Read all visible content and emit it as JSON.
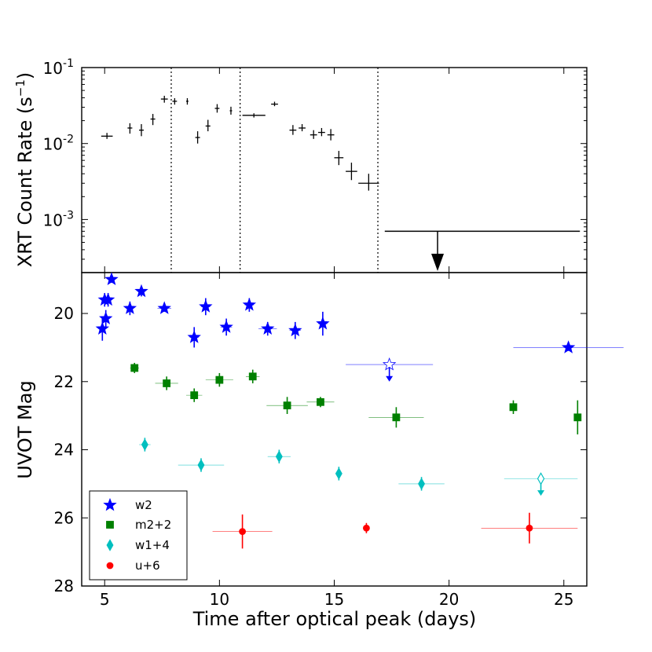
{
  "chart_data": [
    {
      "type": "scatter",
      "panel": "top",
      "ylabel": "XRT Count Rate (s",
      "ylabel_sup": "−1",
      "ylabel_close": ")",
      "yscale": "log",
      "ylim": [
        0.0002,
        0.1
      ],
      "xlim": [
        4,
        26
      ],
      "y_ticks": [
        {
          "value": 0.001,
          "base": "10",
          "exp": "-3"
        },
        {
          "value": 0.01,
          "base": "10",
          "exp": "-2"
        },
        {
          "value": 0.1,
          "base": "10",
          "exp": "-1"
        }
      ],
      "vlines": [
        7.9,
        10.9,
        16.9
      ],
      "points": [
        {
          "x": 5.1,
          "y": 0.0125,
          "xerr": 0.25,
          "ylo": 0.0115,
          "yhi": 0.0138
        },
        {
          "x": 6.1,
          "y": 0.016,
          "xerr": 0.0,
          "ylo": 0.0135,
          "yhi": 0.0185
        },
        {
          "x": 6.6,
          "y": 0.015,
          "xerr": 0.0,
          "ylo": 0.0125,
          "yhi": 0.018
        },
        {
          "x": 7.1,
          "y": 0.021,
          "xerr": 0.0,
          "ylo": 0.0175,
          "yhi": 0.0245
        },
        {
          "x": 7.6,
          "y": 0.0385,
          "xerr": 0.15,
          "ylo": 0.0345,
          "yhi": 0.0425
        },
        {
          "x": 8.05,
          "y": 0.036,
          "xerr": 0.1,
          "ylo": 0.0325,
          "yhi": 0.0395
        },
        {
          "x": 8.6,
          "y": 0.036,
          "xerr": 0.05,
          "ylo": 0.0325,
          "yhi": 0.0395
        },
        {
          "x": 9.05,
          "y": 0.012,
          "xerr": 0.0,
          "ylo": 0.01,
          "yhi": 0.0145
        },
        {
          "x": 9.5,
          "y": 0.017,
          "xerr": 0.0,
          "ylo": 0.0145,
          "yhi": 0.0205
        },
        {
          "x": 9.9,
          "y": 0.029,
          "xerr": 0.1,
          "ylo": 0.0255,
          "yhi": 0.033
        },
        {
          "x": 10.5,
          "y": 0.027,
          "xerr": 0.05,
          "ylo": 0.024,
          "yhi": 0.0305
        },
        {
          "x": 11.5,
          "y": 0.0235,
          "xerr": 0.5,
          "ylo": 0.022,
          "yhi": 0.025
        },
        {
          "x": 12.4,
          "y": 0.033,
          "xerr": 0.15,
          "ylo": 0.031,
          "yhi": 0.0355
        },
        {
          "x": 13.2,
          "y": 0.015,
          "xerr": 0.15,
          "ylo": 0.013,
          "yhi": 0.0175
        },
        {
          "x": 13.6,
          "y": 0.016,
          "xerr": 0.15,
          "ylo": 0.0145,
          "yhi": 0.018
        },
        {
          "x": 14.1,
          "y": 0.013,
          "xerr": 0.15,
          "ylo": 0.0115,
          "yhi": 0.015
        },
        {
          "x": 14.45,
          "y": 0.014,
          "xerr": 0.15,
          "ylo": 0.0125,
          "yhi": 0.016
        },
        {
          "x": 14.85,
          "y": 0.013,
          "xerr": 0.15,
          "ylo": 0.011,
          "yhi": 0.0155
        },
        {
          "x": 15.2,
          "y": 0.0065,
          "xerr": 0.2,
          "ylo": 0.0052,
          "yhi": 0.008
        },
        {
          "x": 15.75,
          "y": 0.0043,
          "xerr": 0.25,
          "ylo": 0.0033,
          "yhi": 0.0056
        },
        {
          "x": 16.5,
          "y": 0.003,
          "xerr": 0.45,
          "ylo": 0.0024,
          "yhi": 0.004
        }
      ],
      "upper_limit": {
        "x": 19.5,
        "y": 0.0007,
        "xlo": 17.2,
        "xhi": 25.7,
        "arrow_to": 0.00021
      }
    },
    {
      "type": "scatter",
      "panel": "bottom",
      "title": "",
      "xlabel": "Time after optical peak (days)",
      "ylabel": "UVOT Mag",
      "xlim": [
        4,
        26
      ],
      "ylim": [
        28,
        18.8
      ],
      "x_ticks": [
        "5",
        "10",
        "15",
        "20",
        "25"
      ],
      "y_ticks": [
        "20",
        "22",
        "24",
        "26",
        "28"
      ],
      "legend_position": "lower-left",
      "series": [
        {
          "name": "w2",
          "marker": "star",
          "color": "#0000ff",
          "points": [
            {
              "x": 4.9,
              "y": 20.45,
              "xerr": 0.05,
              "yerr": 0.35
            },
            {
              "x": 5.0,
              "y": 19.6,
              "xerr": 0.05,
              "yerr": 0.2
            },
            {
              "x": 5.05,
              "y": 20.15,
              "xerr": 0.05,
              "yerr": 0.25
            },
            {
              "x": 5.15,
              "y": 19.6,
              "xerr": 0.05,
              "yerr": 0.2
            },
            {
              "x": 5.3,
              "y": 19.0,
              "xerr": 0.05,
              "yerr": 0.1
            },
            {
              "x": 6.1,
              "y": 19.85,
              "xerr": 0.15,
              "yerr": 0.2
            },
            {
              "x": 6.6,
              "y": 19.35,
              "xerr": 0.15,
              "yerr": 0.15
            },
            {
              "x": 7.6,
              "y": 19.85,
              "xerr": 0.3,
              "yerr": 0.1
            },
            {
              "x": 8.9,
              "y": 20.7,
              "xerr": 0.2,
              "yerr": 0.3
            },
            {
              "x": 9.4,
              "y": 19.8,
              "xerr": 0.2,
              "yerr": 0.25
            },
            {
              "x": 10.3,
              "y": 20.4,
              "xerr": 0.25,
              "yerr": 0.25
            },
            {
              "x": 11.3,
              "y": 19.75,
              "xerr": 0.2,
              "yerr": 0.2
            },
            {
              "x": 12.1,
              "y": 20.45,
              "xerr": 0.4,
              "yerr": 0.2
            },
            {
              "x": 13.3,
              "y": 20.5,
              "xerr": 0.25,
              "yerr": 0.25
            },
            {
              "x": 14.5,
              "y": 20.3,
              "xerr": 0.2,
              "yerr": 0.35
            },
            {
              "x": 25.2,
              "y": 21.0,
              "xerr": 2.4,
              "yerr": 0.1
            }
          ],
          "upper_limits": [
            {
              "x": 17.4,
              "y": 21.5,
              "xerr": 1.9,
              "arrow_to": 22.0
            }
          ]
        },
        {
          "name": "m2+2",
          "marker": "square",
          "color": "#008000",
          "points": [
            {
              "x": 6.3,
              "y": 21.6,
              "xerr": 0.2,
              "yerr": 0.15
            },
            {
              "x": 7.7,
              "y": 22.05,
              "xerr": 0.5,
              "yerr": 0.2
            },
            {
              "x": 8.9,
              "y": 22.4,
              "xerr": 0.35,
              "yerr": 0.2
            },
            {
              "x": 10.0,
              "y": 21.95,
              "xerr": 0.6,
              "yerr": 0.2
            },
            {
              "x": 11.45,
              "y": 21.85,
              "xerr": 0.3,
              "yerr": 0.2
            },
            {
              "x": 12.95,
              "y": 22.7,
              "xerr": 0.9,
              "yerr": 0.25
            },
            {
              "x": 14.4,
              "y": 22.6,
              "xerr": 0.6,
              "yerr": 0.15
            },
            {
              "x": 17.7,
              "y": 23.05,
              "xerr": 1.2,
              "yerr": 0.3
            },
            {
              "x": 22.8,
              "y": 22.75,
              "xerr": 0.0,
              "yerr": 0.2
            },
            {
              "x": 25.6,
              "y": 23.05,
              "xerr": 0.0,
              "yerr": 0.5
            }
          ],
          "upper_limits": []
        },
        {
          "name": "w1+4",
          "marker": "diamond",
          "color": "#00bfbf",
          "points": [
            {
              "x": 6.75,
              "y": 23.85,
              "xerr": 0.25,
              "yerr": 0.2
            },
            {
              "x": 9.2,
              "y": 24.45,
              "xerr": 1.0,
              "yerr": 0.2
            },
            {
              "x": 12.6,
              "y": 24.2,
              "xerr": 0.5,
              "yerr": 0.2
            },
            {
              "x": 15.2,
              "y": 24.7,
              "xerr": 0.0,
              "yerr": 0.2
            },
            {
              "x": 18.8,
              "y": 25.0,
              "xerr": 1.0,
              "yerr": 0.2
            }
          ],
          "upper_limits": [
            {
              "x": 24.0,
              "y": 24.85,
              "xerr": 1.6,
              "arrow_to": 25.35
            }
          ]
        },
        {
          "name": "u+6",
          "marker": "circle",
          "color": "#ff0000",
          "points": [
            {
              "x": 11.0,
              "y": 26.4,
              "xerr": 1.3,
              "yerr": 0.5
            },
            {
              "x": 16.4,
              "y": 26.3,
              "xerr": 0.1,
              "yerr": 0.15
            },
            {
              "x": 23.5,
              "y": 26.3,
              "xerr": 2.1,
              "yerr": 0.45
            }
          ],
          "upper_limits": []
        }
      ]
    }
  ]
}
